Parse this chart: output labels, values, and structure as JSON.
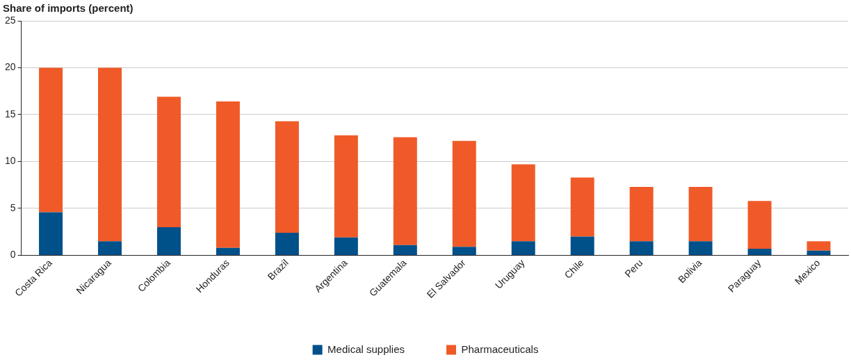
{
  "chart_data": {
    "type": "bar",
    "stacked": true,
    "ylabel": "Share of imports (percent)",
    "categories": [
      "Costa Rica",
      "Nicaragua",
      "Colombia",
      "Honduras",
      "Brazil",
      "Argentina",
      "Guatemala",
      "El Salvador",
      "Uruguay",
      "Chile",
      "Peru",
      "Bolivia",
      "Paraguay",
      "Mexico"
    ],
    "series": [
      {
        "name": "Medical supplies",
        "color": "#00508a",
        "values": [
          4.6,
          1.5,
          3.0,
          0.8,
          2.4,
          1.9,
          1.1,
          0.9,
          1.5,
          2.0,
          1.5,
          1.5,
          0.7,
          0.5
        ]
      },
      {
        "name": "Pharmaceuticals",
        "color": "#f05a28",
        "values": [
          15.4,
          18.5,
          13.9,
          15.6,
          11.9,
          10.9,
          11.5,
          11.3,
          8.2,
          6.3,
          5.8,
          5.8,
          5.1,
          1.0
        ]
      }
    ],
    "ylim": [
      0,
      25
    ],
    "yticks": [
      0,
      5,
      10,
      15,
      20,
      25
    ],
    "grid": "y",
    "legend": "bottom"
  }
}
